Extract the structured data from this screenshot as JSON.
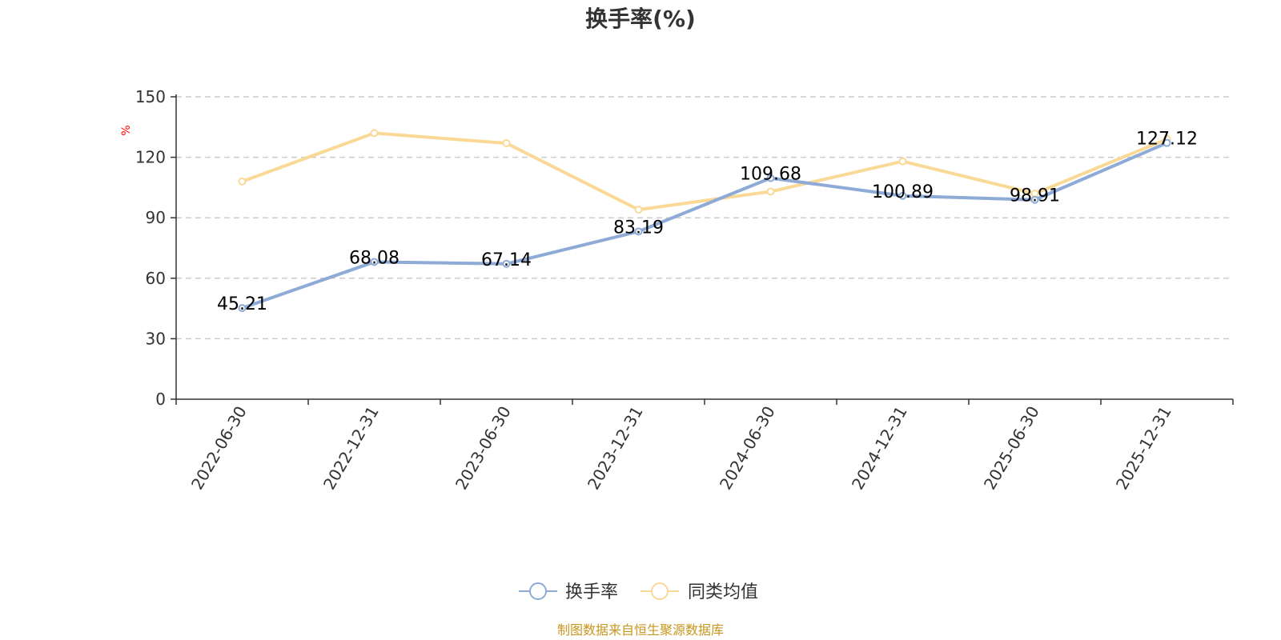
{
  "colors": {
    "series_turnover": "#8eaad6",
    "series_peer_avg": "#fad996",
    "unit_label": "#ff0000",
    "source": "#c8961e",
    "grid": "#cccccc",
    "axis": "#333333"
  },
  "chart_data": {
    "type": "line",
    "title": "换手率(%)",
    "ylabel": "%",
    "xlabel": "",
    "ylim": [
      0,
      150
    ],
    "yticks": [
      0,
      30,
      60,
      90,
      120,
      150
    ],
    "grid": true,
    "legend_position": "bottom-center",
    "categories": [
      "2022-06-30",
      "2022-12-31",
      "2023-06-30",
      "2023-12-31",
      "2024-06-30",
      "2024-12-31",
      "2025-06-30",
      "2025-12-31"
    ],
    "series": [
      {
        "name": "换手率",
        "values": [
          45.21,
          68.08,
          67.14,
          83.19,
          109.68,
          100.89,
          98.91,
          127.12
        ],
        "labels": [
          "45.21",
          "68.08",
          "67.14",
          "83.19",
          "109.68",
          "100.89",
          "98.91",
          "127.12"
        ],
        "show_labels": true
      },
      {
        "name": "同类均值",
        "values": [
          108,
          132,
          127,
          94,
          103,
          118,
          102,
          129
        ],
        "show_labels": false
      }
    ]
  },
  "footer": {
    "source_text": "制图数据来自恒生聚源数据库"
  }
}
